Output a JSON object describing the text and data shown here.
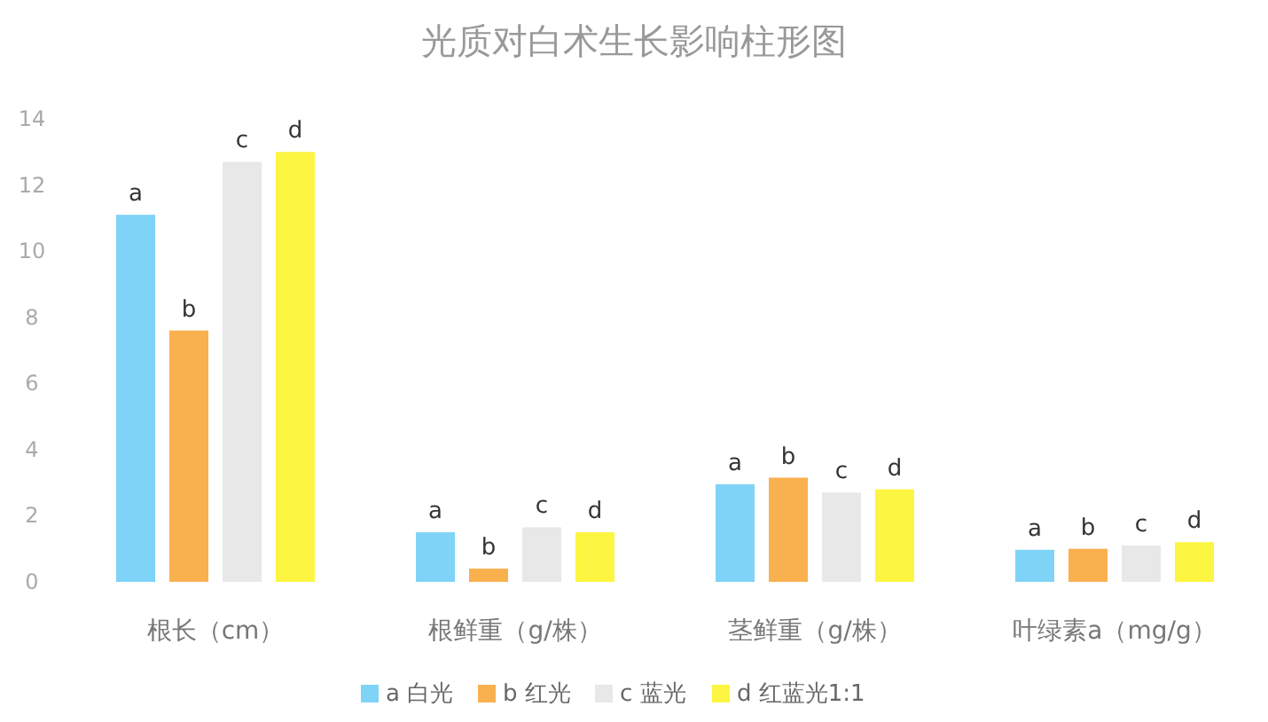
{
  "chart_data": {
    "type": "bar",
    "title": "光质对白术生长影响柱形图",
    "categories": [
      "根长（cm）",
      "根鲜重（g/株）",
      "茎鲜重（g/株）",
      "叶绿素a（mg/g）"
    ],
    "series": [
      {
        "name": "a 白光",
        "color": "#7fd3f7",
        "values": [
          11.1,
          1.5,
          2.95,
          0.97
        ],
        "value_labels": [
          "a",
          "a",
          "a",
          "a"
        ]
      },
      {
        "name": "b 红光",
        "color": "#f9b04f",
        "values": [
          7.6,
          0.4,
          3.15,
          1.0
        ],
        "value_labels": [
          "b",
          "b",
          "b",
          "b"
        ]
      },
      {
        "name": "c 蓝光",
        "color": "#e8e8e8",
        "values": [
          12.7,
          1.65,
          2.7,
          1.1
        ],
        "value_labels": [
          "c",
          "c",
          "c",
          "c"
        ]
      },
      {
        "name": "d 红蓝光1:1",
        "color": "#fcf542",
        "values": [
          13.0,
          1.5,
          2.8,
          1.2
        ],
        "value_labels": [
          "d",
          "d",
          "d",
          "d"
        ]
      }
    ],
    "ylim": [
      0,
      14
    ],
    "yticks": [
      0,
      2,
      4,
      6,
      8,
      10,
      12,
      14
    ],
    "grid": false,
    "legend": "bottom"
  }
}
